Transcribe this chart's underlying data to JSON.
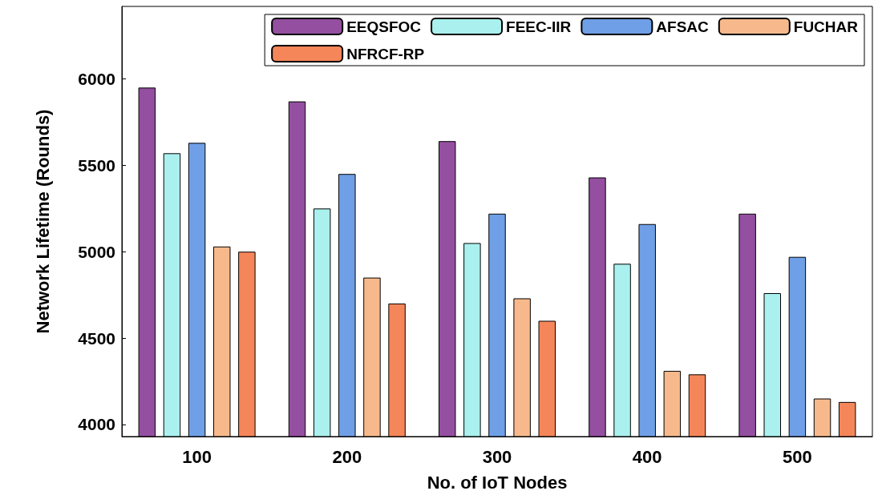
{
  "chart_data": {
    "type": "bar",
    "xlabel": "No. of IoT Nodes",
    "ylabel": "Network Lifetime (Rounds)",
    "categories": [
      "100",
      "200",
      "300",
      "400",
      "500"
    ],
    "series": [
      {
        "name": "EEQSFOC",
        "color": "#944fa0",
        "values": [
          5950,
          5870,
          5640,
          5430,
          5220
        ]
      },
      {
        "name": "FEEC-IIR",
        "color": "#aaf0ee",
        "values": [
          5570,
          5250,
          5050,
          4930,
          4760
        ]
      },
      {
        "name": "AFSAC",
        "color": "#6f9fe6",
        "values": [
          5630,
          5450,
          5220,
          5160,
          4970
        ]
      },
      {
        "name": "FUCHAR",
        "color": "#f7b98c",
        "values": [
          5030,
          4850,
          4730,
          4310,
          4150
        ]
      },
      {
        "name": "NFRCF-RP",
        "color": "#f5865a",
        "values": [
          5000,
          4700,
          4600,
          4290,
          4130
        ]
      }
    ],
    "ylim": [
      3930,
      6420
    ],
    "yticks": [
      4000,
      4500,
      5000,
      5500,
      6000
    ],
    "grid": false,
    "legend": "top right"
  }
}
